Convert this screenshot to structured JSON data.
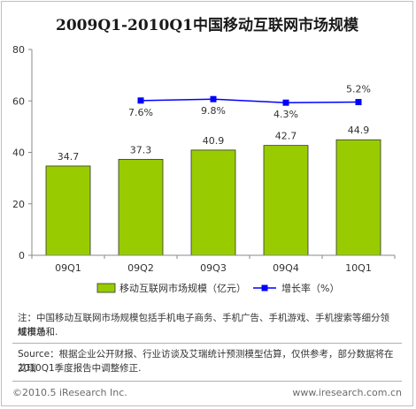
{
  "chart_data": {
    "type": "bar+line",
    "title": "2009Q1-2010Q1中国移动互联网市场规模",
    "categories": [
      "09Q1",
      "09Q2",
      "09Q3",
      "09Q4",
      "10Q1"
    ],
    "series": [
      {
        "name": "移动互联网市场规模（亿元）",
        "type": "bar",
        "axis": "left",
        "values": [
          34.7,
          37.3,
          40.9,
          42.7,
          44.9
        ],
        "labels": [
          "34.7",
          "37.3",
          "40.9",
          "42.7",
          "44.9"
        ],
        "color": "#99cc00"
      },
      {
        "name": "增长率（%）",
        "type": "line",
        "axis": "right",
        "values": [
          null,
          7.6,
          9.8,
          4.3,
          5.2
        ],
        "labels": [
          "",
          "7.6%",
          "9.8%",
          "4.3%",
          "5.2%"
        ],
        "color": "#0000ff"
      }
    ],
    "yticks": [
      "0",
      "20",
      "40",
      "60",
      "80"
    ],
    "ylim": [
      0,
      80
    ],
    "grid": false,
    "legend": "bottom"
  },
  "notes": {
    "note_line1": "注：中国移动互联网市场规模包括手机电子商务、手机广告、手机游戏、手机搜索等细分领域市场",
    "note_line2": "规模总和.",
    "source_line1": "Source：根据企业公开财报、行业访谈及艾瑞统计预测模型估算，仅供参考，部分数据将在艾瑞",
    "source_line2": "2010Q1季度报告中调整修正."
  },
  "footer": {
    "copyright": "©2010.5 iResearch Inc.",
    "website": "www.iresearch.com.cn"
  }
}
